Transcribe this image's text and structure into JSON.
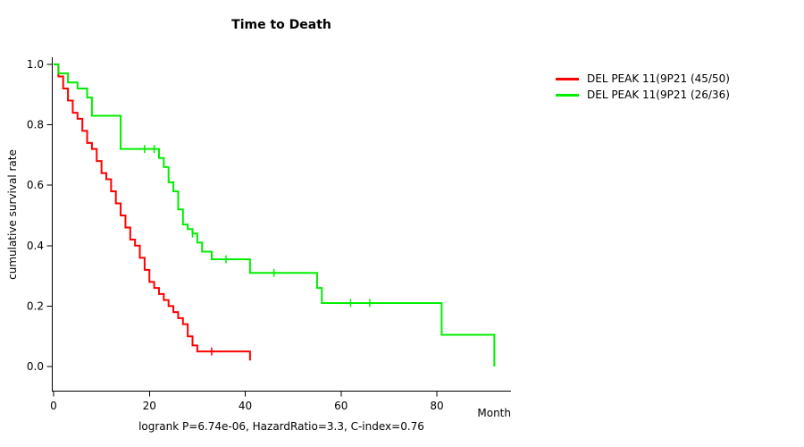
{
  "title": "Time to Death",
  "footnote": "logrank P=6.74e-06, HazardRatio=3.3, C-index=0.76",
  "axes": {
    "xlabel": "Month",
    "ylabel": "cumulative survival rate",
    "xticks": [
      0,
      20,
      40,
      60,
      80
    ],
    "yticks": [
      "0.0",
      "0.2",
      "0.4",
      "0.6",
      "0.8",
      "1.0"
    ]
  },
  "legend": {
    "items": [
      {
        "label": "DEL PEAK 11(9P21 (45/50)",
        "color": "#ff0000"
      },
      {
        "label": "DEL PEAK 11(9P21 (26/36)",
        "color": "#00ee00"
      }
    ]
  },
  "chart_data": {
    "type": "line",
    "subtype": "kaplan-meier-step",
    "title": "Time to Death",
    "xlabel": "Month",
    "ylabel": "cumulative survival rate",
    "xlim": [
      0,
      95
    ],
    "ylim": [
      0.0,
      1.0
    ],
    "grid": false,
    "legend_position": "right-outside",
    "series": [
      {
        "name": "DEL PEAK 11(9P21 (45/50)",
        "color": "#ff0000",
        "points": [
          [
            0,
            1.0
          ],
          [
            1,
            0.96
          ],
          [
            2,
            0.92
          ],
          [
            3,
            0.88
          ],
          [
            4,
            0.84
          ],
          [
            5,
            0.82
          ],
          [
            6,
            0.78
          ],
          [
            7,
            0.74
          ],
          [
            8,
            0.72
          ],
          [
            9,
            0.68
          ],
          [
            10,
            0.64
          ],
          [
            11,
            0.62
          ],
          [
            12,
            0.58
          ],
          [
            13,
            0.54
          ],
          [
            14,
            0.5
          ],
          [
            15,
            0.46
          ],
          [
            16,
            0.42
          ],
          [
            17,
            0.4
          ],
          [
            18,
            0.36
          ],
          [
            19,
            0.32
          ],
          [
            20,
            0.28
          ],
          [
            21,
            0.26
          ],
          [
            22,
            0.24
          ],
          [
            23,
            0.22
          ],
          [
            24,
            0.2
          ],
          [
            25,
            0.18
          ],
          [
            26,
            0.16
          ],
          [
            27,
            0.14
          ],
          [
            28,
            0.1
          ],
          [
            29,
            0.07
          ],
          [
            30,
            0.05
          ],
          [
            41,
            0.02
          ]
        ],
        "censors": [
          [
            33,
            0.05
          ]
        ]
      },
      {
        "name": "DEL PEAK 11(9P21 (26/36)",
        "color": "#00ee00",
        "points": [
          [
            0,
            1.0
          ],
          [
            1,
            0.97
          ],
          [
            3,
            0.94
          ],
          [
            5,
            0.92
          ],
          [
            7,
            0.89
          ],
          [
            8,
            0.83
          ],
          [
            14,
            0.72
          ],
          [
            22,
            0.69
          ],
          [
            23,
            0.66
          ],
          [
            24,
            0.61
          ],
          [
            25,
            0.58
          ],
          [
            26,
            0.52
          ],
          [
            27,
            0.47
          ],
          [
            28,
            0.455
          ],
          [
            29,
            0.44
          ],
          [
            30,
            0.41
          ],
          [
            31,
            0.38
          ],
          [
            33,
            0.355
          ],
          [
            41,
            0.31
          ],
          [
            55,
            0.26
          ],
          [
            56,
            0.21
          ],
          [
            81,
            0.105
          ],
          [
            92,
            0.0
          ]
        ],
        "censors": [
          [
            19,
            0.72
          ],
          [
            21,
            0.72
          ],
          [
            29,
            0.44
          ],
          [
            36,
            0.355
          ],
          [
            46,
            0.31
          ],
          [
            62,
            0.21
          ],
          [
            66,
            0.21
          ]
        ]
      }
    ]
  }
}
